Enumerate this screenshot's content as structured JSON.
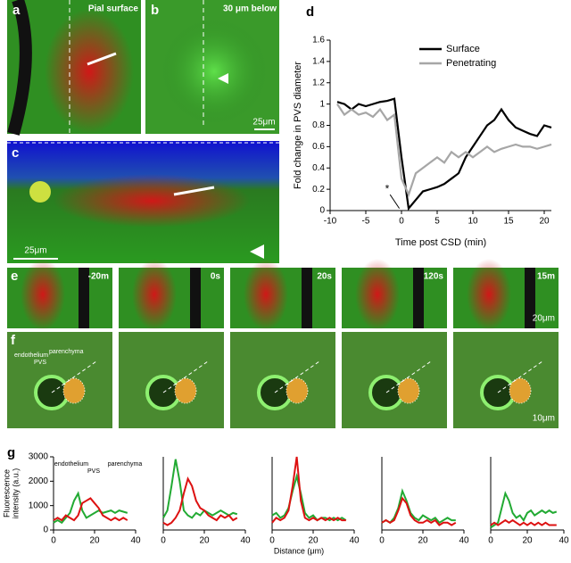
{
  "panels": {
    "a": "a",
    "b": "b",
    "c": "c",
    "d": "d",
    "e": "e",
    "f": "f",
    "g": "g",
    "a_title": "Pial surface",
    "b_title": "30 μm below",
    "b_scale": "25μm",
    "c_scale": "25μm",
    "e_times": [
      "-20m",
      "0s",
      "20s",
      "120s",
      "15m"
    ],
    "e_scale": "20μm",
    "f_scale": "10μm",
    "f_labels": [
      "endothelium",
      "PVS",
      "parenchyma"
    ]
  },
  "chart_data": [
    {
      "type": "line",
      "xlabel": "Time post CSD (min)",
      "ylabel": "Fold change in PVS diameter",
      "annotation": "*",
      "x": [
        -9,
        -8,
        -7,
        -6,
        -5,
        -4,
        -3,
        -2,
        -1,
        0,
        1,
        2,
        3,
        4,
        5,
        6,
        7,
        8,
        9,
        10,
        11,
        12,
        13,
        14,
        15,
        16,
        17,
        18,
        19,
        20,
        21
      ],
      "series": [
        {
          "name": "Surface",
          "color": "#000000",
          "values": [
            1.02,
            1.0,
            0.95,
            1.0,
            0.98,
            1.0,
            1.02,
            1.03,
            1.05,
            0.5,
            0.02,
            0.1,
            0.18,
            0.2,
            0.22,
            0.25,
            0.3,
            0.35,
            0.5,
            0.6,
            0.7,
            0.8,
            0.85,
            0.95,
            0.85,
            0.78,
            0.75,
            0.72,
            0.7,
            0.8,
            0.78
          ]
        },
        {
          "name": "Penetrating",
          "color": "#a6a6a6",
          "values": [
            1.0,
            0.9,
            0.95,
            0.9,
            0.92,
            0.88,
            0.95,
            0.85,
            0.9,
            0.3,
            0.15,
            0.35,
            0.4,
            0.45,
            0.5,
            0.45,
            0.55,
            0.5,
            0.55,
            0.5,
            0.55,
            0.6,
            0.55,
            0.58,
            0.6,
            0.62,
            0.6,
            0.6,
            0.58,
            0.6,
            0.62
          ]
        }
      ],
      "xlim": [
        -10,
        21
      ],
      "xticks": [
        -10,
        -5,
        0,
        5,
        10,
        15,
        20
      ],
      "ylim": [
        0,
        1.6
      ],
      "yticks": [
        0,
        0.2,
        0.4,
        0.6,
        0.8,
        1,
        1.2,
        1.4,
        1.6
      ],
      "legend": "upper-right"
    },
    {
      "type": "line",
      "ylabel": [
        "Fluorescence",
        "intensity (a.u.)"
      ],
      "annotations": [
        "endothelium",
        "PVS",
        "parenchyma"
      ],
      "x": [
        0,
        2,
        4,
        6,
        8,
        10,
        12,
        14,
        16,
        18,
        20,
        22,
        24,
        26,
        28,
        30,
        32,
        34,
        36
      ],
      "series": [
        {
          "color": "#22aa33",
          "values": [
            300,
            400,
            300,
            500,
            700,
            1200,
            1500,
            800,
            500,
            600,
            700,
            800,
            700,
            750,
            800,
            700,
            800,
            750,
            700
          ]
        },
        {
          "color": "#dd1111",
          "values": [
            400,
            500,
            400,
            600,
            500,
            400,
            600,
            1100,
            1200,
            1300,
            1100,
            900,
            600,
            500,
            400,
            500,
            400,
            500,
            400
          ]
        }
      ],
      "xlim": [
        0,
        40
      ],
      "xticks": [
        0,
        20,
        40
      ],
      "ylim": [
        0,
        3000
      ],
      "yticks": [
        0,
        1000,
        2000,
        3000
      ]
    },
    {
      "type": "line",
      "x": [
        0,
        2,
        4,
        6,
        8,
        10,
        12,
        14,
        16,
        18,
        20,
        22,
        24,
        26,
        28,
        30,
        32,
        34,
        36
      ],
      "series": [
        {
          "color": "#22aa33",
          "values": [
            500,
            800,
            1800,
            2900,
            2000,
            800,
            600,
            500,
            700,
            600,
            800,
            700,
            600,
            700,
            800,
            700,
            600,
            700,
            650
          ]
        },
        {
          "color": "#dd1111",
          "values": [
            300,
            200,
            300,
            500,
            800,
            1500,
            2100,
            1800,
            1200,
            900,
            800,
            600,
            500,
            400,
            600,
            500,
            600,
            400,
            500
          ]
        }
      ],
      "xlim": [
        0,
        40
      ],
      "xticks": [
        0,
        20,
        40
      ],
      "ylim": [
        0,
        3000
      ]
    },
    {
      "type": "line",
      "xlabel": "Distance (μm)",
      "x": [
        0,
        2,
        4,
        6,
        8,
        10,
        12,
        14,
        16,
        18,
        20,
        22,
        24,
        26,
        28,
        30,
        32,
        34,
        36
      ],
      "series": [
        {
          "color": "#22aa33",
          "values": [
            600,
            700,
            500,
            600,
            900,
            1600,
            2200,
            1500,
            700,
            500,
            600,
            400,
            500,
            500,
            400,
            500,
            400,
            500,
            400
          ]
        },
        {
          "color": "#dd1111",
          "values": [
            300,
            500,
            400,
            500,
            800,
            1800,
            3000,
            1200,
            500,
            400,
            500,
            400,
            500,
            400,
            500,
            400,
            500,
            400,
            400
          ]
        }
      ],
      "xlim": [
        0,
        40
      ],
      "xticks": [
        0,
        20,
        40
      ],
      "ylim": [
        0,
        3000
      ]
    },
    {
      "type": "line",
      "x": [
        0,
        2,
        4,
        6,
        8,
        10,
        12,
        14,
        16,
        18,
        20,
        22,
        24,
        26,
        28,
        30,
        32,
        34,
        36
      ],
      "series": [
        {
          "color": "#22aa33",
          "values": [
            300,
            400,
            300,
            500,
            900,
            1600,
            1200,
            700,
            500,
            400,
            600,
            500,
            400,
            500,
            300,
            400,
            500,
            400,
            400
          ]
        },
        {
          "color": "#dd1111",
          "values": [
            300,
            400,
            300,
            400,
            800,
            1300,
            1100,
            600,
            400,
            300,
            300,
            400,
            300,
            400,
            200,
            300,
            300,
            200,
            300
          ]
        }
      ],
      "xlim": [
        0,
        40
      ],
      "xticks": [
        0,
        20,
        40
      ],
      "ylim": [
        0,
        3000
      ]
    },
    {
      "type": "line",
      "x": [
        0,
        2,
        4,
        6,
        8,
        10,
        12,
        14,
        16,
        18,
        20,
        22,
        24,
        26,
        28,
        30,
        32,
        34,
        36
      ],
      "series": [
        {
          "color": "#22aa33",
          "values": [
            100,
            200,
            300,
            900,
            1500,
            1200,
            700,
            500,
            600,
            400,
            700,
            800,
            600,
            700,
            800,
            700,
            800,
            700,
            750
          ]
        },
        {
          "color": "#dd1111",
          "values": [
            200,
            300,
            200,
            300,
            400,
            300,
            400,
            300,
            200,
            300,
            200,
            300,
            200,
            300,
            200,
            300,
            200,
            200,
            200
          ]
        }
      ],
      "xlim": [
        0,
        40
      ],
      "xticks": [
        0,
        20,
        40
      ],
      "ylim": [
        0,
        3000
      ]
    }
  ]
}
